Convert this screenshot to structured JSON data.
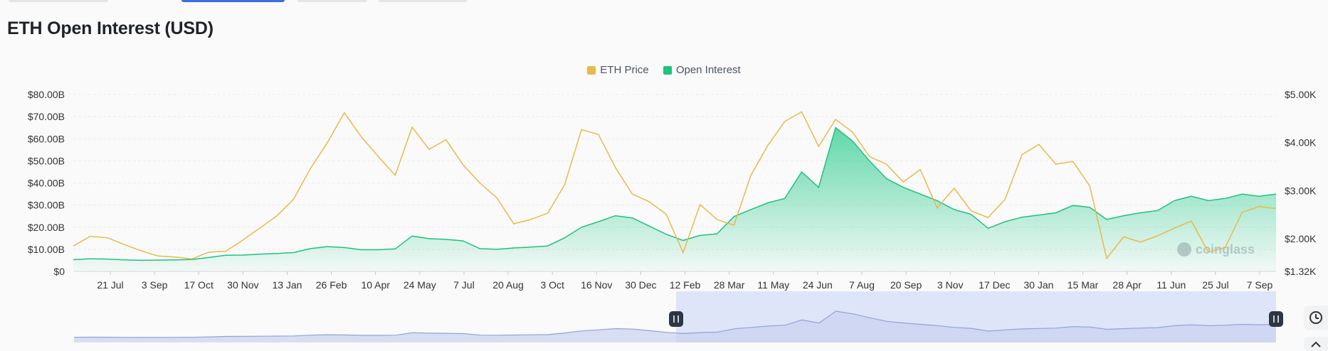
{
  "page": {
    "title": "ETH Open Interest (USD)",
    "watermark": "coinglass"
  },
  "chart_data": {
    "type": "line",
    "title": "ETH Open Interest (USD)",
    "legend": [
      "ETH Price",
      "Open Interest"
    ],
    "legend_position": "top-center",
    "x_ticks": [
      "21 Jul",
      "3 Sep",
      "17 Oct",
      "30 Nov",
      "13 Jan",
      "26 Feb",
      "10 Apr",
      "24 May",
      "7 Jul",
      "20 Aug",
      "3 Oct",
      "16 Nov",
      "30 Dec",
      "12 Feb",
      "28 Mar",
      "11 May",
      "24 Jun",
      "7 Aug",
      "20 Sep",
      "3 Nov",
      "17 Dec",
      "30 Jan",
      "15 Mar",
      "28 Apr",
      "11 Jun",
      "25 Jul",
      "7 Sep"
    ],
    "y_left_ticks": [
      "$0",
      "$10.00B",
      "$20.00B",
      "$30.00B",
      "$40.00B",
      "$50.00B",
      "$60.00B",
      "$70.00B",
      "$80.00B"
    ],
    "y_left_range": [
      0,
      80
    ],
    "y_left_unit": "B USD",
    "y_right_ticks": [
      "$1.32K",
      "$2.00K",
      "$3.00K",
      "$4.00K",
      "$5.00K"
    ],
    "y_right_range": [
      1.32,
      5.0
    ],
    "y_right_unit": "K USD",
    "grid": true,
    "colors": {
      "price": "#e9b949",
      "oi_line": "#1fc27f",
      "oi_fill": "#2ecc8f",
      "navigator": "#8fa4d6",
      "nav_selected": "#dfe5f8"
    },
    "series": [
      {
        "name": "ETH Price",
        "axis": "right",
        "values": [
          1.85,
          2.05,
          2.02,
          1.88,
          1.75,
          1.64,
          1.62,
          1.58,
          1.72,
          1.74,
          1.97,
          2.22,
          2.47,
          2.82,
          3.46,
          4.0,
          4.62,
          4.12,
          3.71,
          3.32,
          4.32,
          3.86,
          4.06,
          3.54,
          3.16,
          2.85,
          2.31,
          2.4,
          2.53,
          3.12,
          4.27,
          4.17,
          3.48,
          2.93,
          2.77,
          2.51,
          1.71,
          2.71,
          2.4,
          2.28,
          3.32,
          3.94,
          4.44,
          4.64,
          3.92,
          4.48,
          4.22,
          3.71,
          3.55,
          3.18,
          3.44,
          2.64,
          3.05,
          2.58,
          2.44,
          2.82,
          3.75,
          3.96,
          3.55,
          3.61,
          3.1,
          1.59,
          2.04,
          1.93,
          2.06,
          2.22,
          2.37,
          1.72,
          1.82,
          2.55,
          2.67,
          2.63
        ]
      },
      {
        "name": "Open Interest",
        "axis": "left",
        "values": [
          5.3,
          5.7,
          5.6,
          5.2,
          5.0,
          5.1,
          5.2,
          5.4,
          6.3,
          7.3,
          7.4,
          7.8,
          8.1,
          8.5,
          10.3,
          11.2,
          10.8,
          9.8,
          9.8,
          10.2,
          16.0,
          14.8,
          14.5,
          13.8,
          10.3,
          10.0,
          10.6,
          11.0,
          11.5,
          15.2,
          20.0,
          22.5,
          25.2,
          24.2,
          20.5,
          16.8,
          14.0,
          16.3,
          17.0,
          24.8,
          28.0,
          31.0,
          33.0,
          45.0,
          38.0,
          65.0,
          59.0,
          50.0,
          42.0,
          38.0,
          35.0,
          32.0,
          28.0,
          25.8,
          19.5,
          22.5,
          24.5,
          25.5,
          26.5,
          29.8,
          29.0,
          23.5,
          25.2,
          26.5,
          27.5,
          32.0,
          34.0,
          32.0,
          33.0,
          35.0,
          34.0,
          35.0
        ]
      }
    ]
  }
}
